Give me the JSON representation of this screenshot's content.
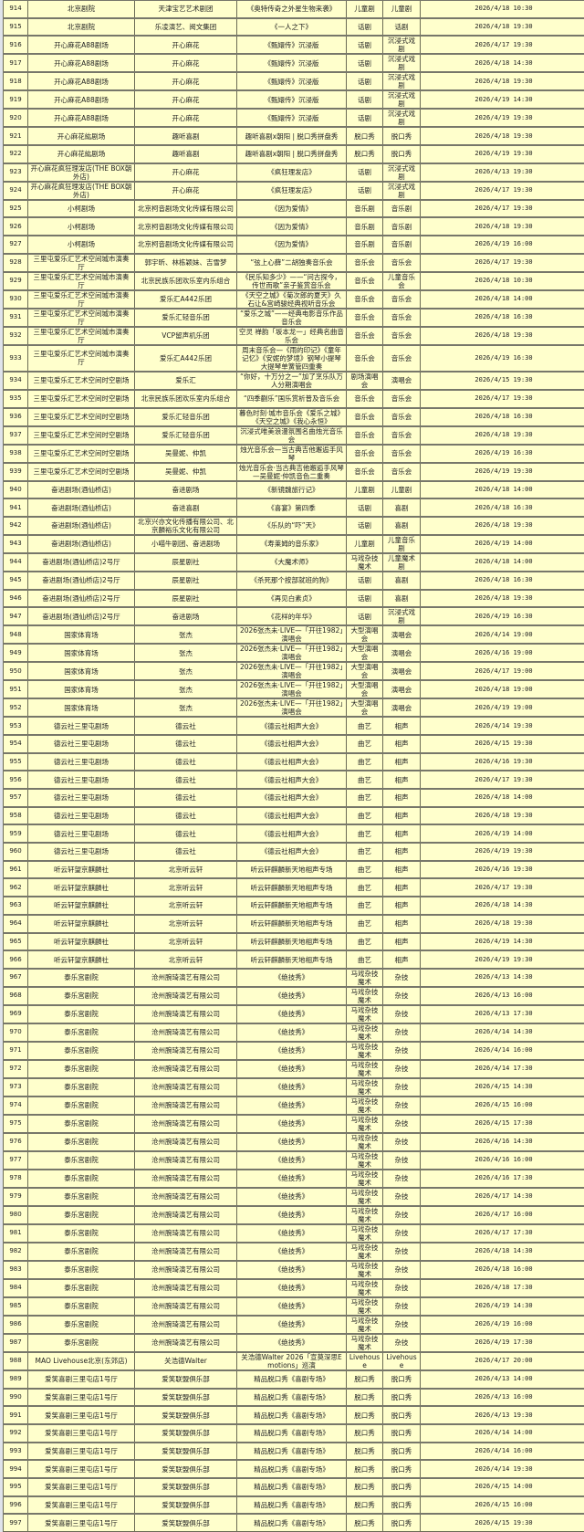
{
  "colors": {
    "row_background": "#ffffcc",
    "border": "#6b6b55"
  },
  "rows": [
    [
      "914",
      "北京剧院",
      "天津宝艺艺术剧团",
      "《奥特传奇之外星生物来袭》",
      "儿童剧",
      "儿童剧",
      "2026/4/18 10:30"
    ],
    [
      "915",
      "北京剧院",
      "乐凌演艺、阅文集团",
      "《一人之下》",
      "话剧",
      "话剧",
      "2026/4/18 19:30"
    ],
    [
      "916",
      "开心麻花A88剧场",
      "开心麻花",
      "《甄嬛传》沉浸版",
      "话剧",
      "沉浸式戏剧",
      "2026/4/17 19:30"
    ],
    [
      "917",
      "开心麻花A88剧场",
      "开心麻花",
      "《甄嬛传》沉浸版",
      "话剧",
      "沉浸式戏剧",
      "2026/4/18 14:30"
    ],
    [
      "918",
      "开心麻花A88剧场",
      "开心麻花",
      "《甄嬛传》沉浸版",
      "话剧",
      "沉浸式戏剧",
      "2026/4/18 19:30"
    ],
    [
      "919",
      "开心麻花A88剧场",
      "开心麻花",
      "《甄嬛传》沉浸版",
      "话剧",
      "沉浸式戏剧",
      "2026/4/19 14:30"
    ],
    [
      "920",
      "开心麻花A88剧场",
      "开心麻花",
      "《甄嬛传》沉浸版",
      "话剧",
      "沉浸式戏剧",
      "2026/4/19 19:30"
    ],
    [
      "921",
      "开心麻花紘剧场",
      "趣听喜剧",
      "趣听喜剧x朝阳 | 脱口秀拼盘秀",
      "脱口秀",
      "脱口秀",
      "2026/4/18 19:30"
    ],
    [
      "922",
      "开心麻花紘剧场",
      "趣听喜剧",
      "趣听喜剧x朝阳 | 脱口秀拼盘秀",
      "脱口秀",
      "脱口秀",
      "2026/4/19 19:30"
    ],
    [
      "923",
      "开心麻花疯狂理发店(THE BOX朝外店)",
      "开心麻花",
      "《疯狂理发店》",
      "话剧",
      "沉浸式戏剧",
      "2026/4/13 19:30"
    ],
    [
      "924",
      "开心麻花疯狂理发店(THE BOX朝外店)",
      "开心麻花",
      "《疯狂理发店》",
      "话剧",
      "沉浸式戏剧",
      "2026/4/17 19:30"
    ],
    [
      "925",
      "小柯剧场",
      "北京柯音剧场文化传媒有限公司",
      "《因为爱情》",
      "音乐剧",
      "音乐剧",
      "2026/4/17 19:30"
    ],
    [
      "926",
      "小柯剧场",
      "北京柯音剧场文化传媒有限公司",
      "《因为爱情》",
      "音乐剧",
      "音乐剧",
      "2026/4/18 19:30"
    ],
    [
      "927",
      "小柯剧场",
      "北京柯音剧场文化传媒有限公司",
      "《因为爱情》",
      "音乐剧",
      "音乐剧",
      "2026/4/19 16:00"
    ],
    [
      "928",
      "三里屯爱乐汇艺术空间城市演奏厅",
      "郭宇昕、林栋颖妹、吉雪梦",
      "“弦上心藓”二胡独奏音乐会",
      "音乐会",
      "音乐会",
      "2026/4/17 19:30"
    ],
    [
      "929",
      "三里屯爱乐汇艺术空间城市演奏厅",
      "北京民族乐团欢乐室内乐组合",
      "《民乐知多少》——“问古探今，传世而歌”亲子鉴赏音乐会",
      "音乐会",
      "儿童音乐会",
      "2026/4/18 10:30"
    ],
    [
      "930",
      "三里屯爱乐汇艺术空间城市演奏厅",
      "爱乐汇A442乐团",
      "《天空之城》《菊次郎的夏天》久石让&宫崎骏经典视听音乐会",
      "音乐会",
      "音乐会",
      "2026/4/18 14:00"
    ],
    [
      "931",
      "三里屯爱乐汇艺术空间城市演奏厅",
      "爱乐汇轻音乐团",
      "“爱乐之城”——经典电影音乐作品音乐会",
      "音乐会",
      "音乐会",
      "2026/4/18 16:30"
    ],
    [
      "932",
      "三里屯爱乐汇艺术空间城市演奏厅",
      "VCP留声机乐团",
      "空灵 禅韵「坂本龙一」经典名曲音乐会",
      "音乐会",
      "音乐会",
      "2026/4/18 19:30"
    ],
    [
      "933",
      "三里屯爱乐汇艺术空间城市演奏厅",
      "爱乐汇A442乐团",
      "周末音乐会—《雨的印记》《童年记忆》《安妮的梦境》钢琴小提琴大提琴单簧管四重奏",
      "音乐会",
      "音乐会",
      "2026/4/19 16:30"
    ],
    [
      "934",
      "三里屯爱乐汇艺术空间时空剧场",
      "爱乐汇",
      "“你好，十万分之一”加了烹乐队万人分期演唱会",
      "剧场演唱会",
      "演唱会",
      "2026/4/15 19:30"
    ],
    [
      "935",
      "三里屯爱乐汇艺术空间时空剧场",
      "北京民族乐团欢乐室内乐组合",
      "“四季蒯乐”国乐赏析普及音乐会",
      "音乐会",
      "音乐会",
      "2026/4/17 19:30"
    ],
    [
      "936",
      "三里屯爱乐汇艺术空间时空剧场",
      "爱乐汇轻音乐团",
      "暮色时刻·城市音乐会《爱乐之城》《天空之城》《我心永恒》",
      "音乐会",
      "音乐会",
      "2026/4/18 16:30"
    ],
    [
      "937",
      "三里屯爱乐汇艺术空间时空剧场",
      "爱乐汇轻音乐团",
      "沉浸式唯美浪漫氛围名曲烛光音乐会",
      "音乐会",
      "音乐会",
      "2026/4/18 19:30"
    ],
    [
      "938",
      "三里屯爱乐汇艺术空间时空剧场",
      "吴曼妮、仲凯",
      "烛光音乐会—当古典吉他邂逅手风琴",
      "音乐会",
      "音乐会",
      "2026/4/19 16:30"
    ],
    [
      "939",
      "三里屯爱乐汇艺术空间时空剧场",
      "吴曼妮、仲凯",
      "烛光音乐会·当古典吉他邂逅手风琴—吴曼妮·仲凯音色二重奏",
      "音乐会",
      "音乐会",
      "2026/4/19 19:30"
    ],
    [
      "940",
      "奋进剧场(酒仙桥店)",
      "奋进剧场",
      "《新镜魏旅行记》",
      "儿童剧",
      "儿童剧",
      "2026/4/18 14:00"
    ],
    [
      "941",
      "奋进剧场(酒仙桥店)",
      "奋进喜剧",
      "《喜宴》第四季",
      "话剧",
      "喜剧",
      "2026/4/18 16:30"
    ],
    [
      "942",
      "奋进剧场(酒仙桥店)",
      "北京兴亦文化传播有限公司、北京麟裕乐文化有限公司",
      "《乐队的“吓”天》",
      "话剧",
      "喜剧",
      "2026/4/18 19:30"
    ],
    [
      "943",
      "奋进剧场(酒仙桥店)",
      "小喵牛剧团、奋进剧场",
      "《寿莱姆的音乐家》",
      "儿童剧",
      "儿童音乐剧",
      "2026/4/19 14:00"
    ],
    [
      "944",
      "奋进剧场(酒仙桥店)2号厅",
      "辰星剧社",
      "《大魔术师》",
      "马戏杂技魔术",
      "儿童魔术剧",
      "2026/4/18 14:00"
    ],
    [
      "945",
      "奋进剧场(酒仙桥店)2号厅",
      "辰星剧社",
      "《杀死那个按部就班的狗》",
      "话剧",
      "喜剧",
      "2026/4/18 16:30"
    ],
    [
      "946",
      "奋进剧场(酒仙桥店)2号厅",
      "辰星剧社",
      "《再见白素贞》",
      "话剧",
      "喜剧",
      "2026/4/18 19:30"
    ],
    [
      "947",
      "奋进剧场(酒仙桥店)2号厅",
      "奋进剧场",
      "《花样的年华》",
      "话剧",
      "沉浸式戏剧",
      "2026/4/19 16:30"
    ],
    [
      "948",
      "国家体育场",
      "张杰",
      "2026张杰未·LIVE—「开往1982」演唱会",
      "大型演唱会",
      "演唱会",
      "2026/4/14 19:00"
    ],
    [
      "949",
      "国家体育场",
      "张杰",
      "2026张杰未·LIVE—「开往1982」演唱会",
      "大型演唱会",
      "演唱会",
      "2026/4/16 19:00"
    ],
    [
      "950",
      "国家体育场",
      "张杰",
      "2026张杰未·LIVE—「开往1982」演唱会",
      "大型演唱会",
      "演唱会",
      "2026/4/17 19:00"
    ],
    [
      "951",
      "国家体育场",
      "张杰",
      "2026张杰未·LIVE—「开往1982」演唱会",
      "大型演唱会",
      "演唱会",
      "2026/4/18 19:00"
    ],
    [
      "952",
      "国家体育场",
      "张杰",
      "2026张杰未·LIVE—「开往1982」演唱会",
      "大型演唱会",
      "演唱会",
      "2026/4/19 19:00"
    ],
    [
      "953",
      "德云社三里屯剧场",
      "德云社",
      "《德云社相声大会》",
      "曲艺",
      "相声",
      "2026/4/14 19:30"
    ],
    [
      "954",
      "德云社三里屯剧场",
      "德云社",
      "《德云社相声大会》",
      "曲艺",
      "相声",
      "2026/4/15 19:30"
    ],
    [
      "955",
      "德云社三里屯剧场",
      "德云社",
      "《德云社相声大会》",
      "曲艺",
      "相声",
      "2026/4/16 19:30"
    ],
    [
      "956",
      "德云社三里屯剧场",
      "德云社",
      "《德云社相声大会》",
      "曲艺",
      "相声",
      "2026/4/17 19:30"
    ],
    [
      "957",
      "德云社三里屯剧场",
      "德云社",
      "《德云社相声大会》",
      "曲艺",
      "相声",
      "2026/4/18 14:00"
    ],
    [
      "958",
      "德云社三里屯剧场",
      "德云社",
      "《德云社相声大会》",
      "曲艺",
      "相声",
      "2026/4/18 19:30"
    ],
    [
      "959",
      "德云社三里屯剧场",
      "德云社",
      "《德云社相声大会》",
      "曲艺",
      "相声",
      "2026/4/19 14:00"
    ],
    [
      "960",
      "德云社三里屯剧场",
      "德云社",
      "《德云社相声大会》",
      "曲艺",
      "相声",
      "2026/4/19 19:30"
    ],
    [
      "961",
      "听云轩望京麒麟社",
      "北京听云轩",
      "听云轩麒麟新天地相声专场",
      "曲艺",
      "相声",
      "2026/4/16 19:30"
    ],
    [
      "962",
      "听云轩望京麒麟社",
      "北京听云轩",
      "听云轩麒麟新天地相声专场",
      "曲艺",
      "相声",
      "2026/4/17 19:30"
    ],
    [
      "963",
      "听云轩望京麒麟社",
      "北京听云轩",
      "听云轩麒麟新天地相声专场",
      "曲艺",
      "相声",
      "2026/4/18 14:30"
    ],
    [
      "964",
      "听云轩望京麒麟社",
      "北京听云轩",
      "听云轩麒麟新天地相声专场",
      "曲艺",
      "相声",
      "2026/4/18 19:30"
    ],
    [
      "965",
      "听云轩望京麒麟社",
      "北京听云轩",
      "听云轩麒麟新天地相声专场",
      "曲艺",
      "相声",
      "2026/4/19 14:30"
    ],
    [
      "966",
      "听云轩望京麒麟社",
      "北京听云轩",
      "听云轩麒麟新天地相声专场",
      "曲艺",
      "相声",
      "2026/4/19 19:30"
    ],
    [
      "967",
      "泰乐宫剧院",
      "沧州腕琦演艺有限公司",
      "《绝技秀》",
      "马戏杂技魔术",
      "杂技",
      "2026/4/13 14:30"
    ],
    [
      "968",
      "泰乐宫剧院",
      "沧州腕琦演艺有限公司",
      "《绝技秀》",
      "马戏杂技魔术",
      "杂技",
      "2026/4/13 16:00"
    ],
    [
      "969",
      "泰乐宫剧院",
      "沧州腕琦演艺有限公司",
      "《绝技秀》",
      "马戏杂技魔术",
      "杂技",
      "2026/4/13 17:30"
    ],
    [
      "970",
      "泰乐宫剧院",
      "沧州腕琦演艺有限公司",
      "《绝技秀》",
      "马戏杂技魔术",
      "杂技",
      "2026/4/14 14:30"
    ],
    [
      "971",
      "泰乐宫剧院",
      "沧州腕琦演艺有限公司",
      "《绝技秀》",
      "马戏杂技魔术",
      "杂技",
      "2026/4/14 16:00"
    ],
    [
      "972",
      "泰乐宫剧院",
      "沧州腕琦演艺有限公司",
      "《绝技秀》",
      "马戏杂技魔术",
      "杂技",
      "2026/4/14 17:30"
    ],
    [
      "973",
      "泰乐宫剧院",
      "沧州腕琦演艺有限公司",
      "《绝技秀》",
      "马戏杂技魔术",
      "杂技",
      "2026/4/15 14:30"
    ],
    [
      "974",
      "泰乐宫剧院",
      "沧州腕琦演艺有限公司",
      "《绝技秀》",
      "马戏杂技魔术",
      "杂技",
      "2026/4/15 16:00"
    ],
    [
      "975",
      "泰乐宫剧院",
      "沧州腕琦演艺有限公司",
      "《绝技秀》",
      "马戏杂技魔术",
      "杂技",
      "2026/4/15 17:30"
    ],
    [
      "976",
      "泰乐宫剧院",
      "沧州腕琦演艺有限公司",
      "《绝技秀》",
      "马戏杂技魔术",
      "杂技",
      "2026/4/16 14:30"
    ],
    [
      "977",
      "泰乐宫剧院",
      "沧州腕琦演艺有限公司",
      "《绝技秀》",
      "马戏杂技魔术",
      "杂技",
      "2026/4/16 16:00"
    ],
    [
      "978",
      "泰乐宫剧院",
      "沧州腕琦演艺有限公司",
      "《绝技秀》",
      "马戏杂技魔术",
      "杂技",
      "2026/4/16 17:30"
    ],
    [
      "979",
      "泰乐宫剧院",
      "沧州腕琦演艺有限公司",
      "《绝技秀》",
      "马戏杂技魔术",
      "杂技",
      "2026/4/17 14:30"
    ],
    [
      "980",
      "泰乐宫剧院",
      "沧州腕琦演艺有限公司",
      "《绝技秀》",
      "马戏杂技魔术",
      "杂技",
      "2026/4/17 16:00"
    ],
    [
      "981",
      "泰乐宫剧院",
      "沧州腕琦演艺有限公司",
      "《绝技秀》",
      "马戏杂技魔术",
      "杂技",
      "2026/4/17 17:30"
    ],
    [
      "982",
      "泰乐宫剧院",
      "沧州腕琦演艺有限公司",
      "《绝技秀》",
      "马戏杂技魔术",
      "杂技",
      "2026/4/18 14:30"
    ],
    [
      "983",
      "泰乐宫剧院",
      "沧州腕琦演艺有限公司",
      "《绝技秀》",
      "马戏杂技魔术",
      "杂技",
      "2026/4/18 16:00"
    ],
    [
      "984",
      "泰乐宫剧院",
      "沧州腕琦演艺有限公司",
      "《绝技秀》",
      "马戏杂技魔术",
      "杂技",
      "2026/4/18 17:30"
    ],
    [
      "985",
      "泰乐宫剧院",
      "沧州腕琦演艺有限公司",
      "《绝技秀》",
      "马戏杂技魔术",
      "杂技",
      "2026/4/19 14:30"
    ],
    [
      "986",
      "泰乐宫剧院",
      "沧州腕琦演艺有限公司",
      "《绝技秀》",
      "马戏杂技魔术",
      "杂技",
      "2026/4/19 16:00"
    ],
    [
      "987",
      "泰乐宫剧院",
      "沧州腕琦演艺有限公司",
      "《绝技秀》",
      "马戏杂技魔术",
      "杂技",
      "2026/4/19 17:30"
    ],
    [
      "988",
      "MAO Livehouse北京(东郊店)",
      "关浩德Walter",
      "关浩德Walter 2026「宣莫深思Emotions」巡演",
      "Livehouse",
      "Livehouse",
      "2026/4/17 20:00"
    ],
    [
      "989",
      "爱笑喜剧三里屯店1号厅",
      "爱笑联盟俱乐部",
      "精品脱口秀《喜剧专场》",
      "脱口秀",
      "脱口秀",
      "2026/4/13 14:00"
    ],
    [
      "990",
      "爱笑喜剧三里屯店1号厅",
      "爱笑联盟俱乐部",
      "精品脱口秀《喜剧专场》",
      "脱口秀",
      "脱口秀",
      "2026/4/13 16:00"
    ],
    [
      "991",
      "爱笑喜剧三里屯店1号厅",
      "爱笑联盟俱乐部",
      "精品脱口秀《喜剧专场》",
      "脱口秀",
      "脱口秀",
      "2026/4/13 19:30"
    ],
    [
      "992",
      "爱笑喜剧三里屯店1号厅",
      "爱笑联盟俱乐部",
      "精品脱口秀《喜剧专场》",
      "脱口秀",
      "脱口秀",
      "2026/4/14 14:00"
    ],
    [
      "993",
      "爱笑喜剧三里屯店1号厅",
      "爱笑联盟俱乐部",
      "精品脱口秀《喜剧专场》",
      "脱口秀",
      "脱口秀",
      "2026/4/14 16:00"
    ],
    [
      "994",
      "爱笑喜剧三里屯店1号厅",
      "爱笑联盟俱乐部",
      "精品脱口秀《喜剧专场》",
      "脱口秀",
      "脱口秀",
      "2026/4/14 19:30"
    ],
    [
      "995",
      "爱笑喜剧三里屯店1号厅",
      "爱笑联盟俱乐部",
      "精品脱口秀《喜剧专场》",
      "脱口秀",
      "脱口秀",
      "2026/4/15 14:00"
    ],
    [
      "996",
      "爱笑喜剧三里屯店1号厅",
      "爱笑联盟俱乐部",
      "精品脱口秀《喜剧专场》",
      "脱口秀",
      "脱口秀",
      "2026/4/15 16:00"
    ],
    [
      "997",
      "爱笑喜剧三里屯店1号厅",
      "爱笑联盟俱乐部",
      "精品脱口秀《喜剧专场》",
      "脱口秀",
      "脱口秀",
      "2026/4/15 19:30"
    ]
  ]
}
